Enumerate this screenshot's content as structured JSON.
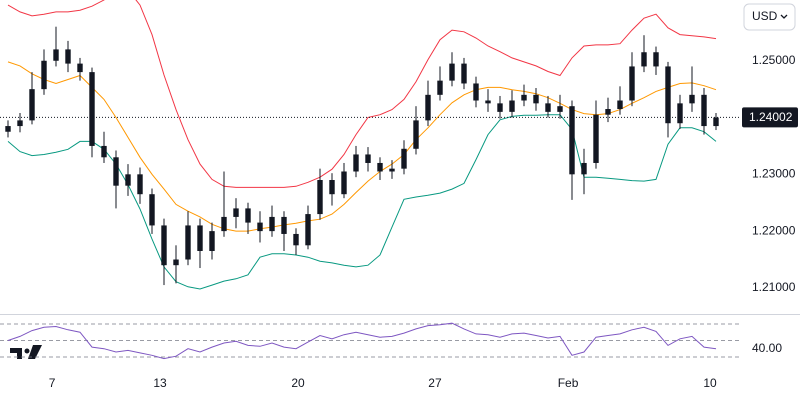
{
  "chart_data": {
    "type": "candlestick",
    "currency": "USD",
    "last_price": 1.24002,
    "xlim": [
      -0.667,
      61
    ],
    "ylim": [
      1.20558,
      1.2607
    ],
    "yticks": [
      {
        "value": 1.21,
        "label": "1.21000"
      },
      {
        "value": 1.22,
        "label": "1.22000"
      },
      {
        "value": 1.23,
        "label": "1.23000"
      },
      {
        "value": 1.25,
        "label": "1.25000"
      }
    ],
    "xticks": [
      {
        "value": 3.67,
        "label": "7"
      },
      {
        "value": 12.67,
        "label": "13"
      },
      {
        "value": 24.17,
        "label": "20"
      },
      {
        "value": 35.58,
        "label": "27"
      },
      {
        "value": 46.67,
        "label": "Feb"
      },
      {
        "value": 58.5,
        "label": "10"
      }
    ],
    "color": "#131722",
    "candles": {
      "open": [
        1.2375,
        1.2385,
        1.2395,
        1.245,
        1.25,
        1.252,
        1.2495,
        1.248,
        1.235,
        1.233,
        1.228,
        1.23,
        1.2265,
        1.221,
        1.214,
        1.215,
        1.221,
        1.2165,
        1.22,
        1.2225,
        1.224,
        1.2215,
        1.22,
        1.2225,
        1.2195,
        1.2175,
        1.223,
        1.229,
        1.2265,
        1.2305,
        1.2335,
        1.232,
        1.2305,
        1.231,
        1.2345,
        1.2395,
        1.244,
        1.2465,
        1.2495,
        1.246,
        1.243,
        1.2425,
        1.241,
        1.243,
        1.244,
        1.2425,
        1.241,
        1.242,
        1.23,
        1.232,
        1.2405,
        1.2415,
        1.243,
        1.249,
        1.2515,
        1.249,
        1.239,
        1.2425,
        1.244,
        1.2385
      ],
      "high": [
        1.2395,
        1.2408,
        1.248,
        1.252,
        1.256,
        1.2535,
        1.2505,
        1.2488,
        1.2375,
        1.2342,
        1.2318,
        1.2312,
        1.2275,
        1.2222,
        1.2175,
        1.2235,
        1.2222,
        1.2215,
        1.2305,
        1.2258,
        1.225,
        1.2235,
        1.2245,
        1.2235,
        1.2205,
        1.2245,
        1.231,
        1.2302,
        1.232,
        1.235,
        1.2348,
        1.233,
        1.2325,
        1.236,
        1.242,
        1.2465,
        1.249,
        1.2515,
        1.2505,
        1.2472,
        1.245,
        1.2438,
        1.2448,
        1.2458,
        1.2452,
        1.2438,
        1.244,
        1.243,
        1.2345,
        1.243,
        1.2435,
        1.2455,
        1.2515,
        1.2545,
        1.2525,
        1.2498,
        1.244,
        1.249,
        1.2452,
        1.2408
      ],
      "low": [
        1.2365,
        1.2374,
        1.2388,
        1.244,
        1.249,
        1.248,
        1.2465,
        1.233,
        1.232,
        1.224,
        1.2262,
        1.2248,
        1.2195,
        1.2105,
        1.2108,
        1.214,
        1.2135,
        1.215,
        1.219,
        1.2205,
        1.2195,
        1.218,
        1.219,
        1.2165,
        1.2158,
        1.2168,
        1.222,
        1.2245,
        1.2258,
        1.2295,
        1.2305,
        1.229,
        1.2292,
        1.23,
        1.2335,
        1.2385,
        1.243,
        1.2455,
        1.245,
        1.2418,
        1.241,
        1.2398,
        1.24,
        1.242,
        1.2412,
        1.24,
        1.2398,
        1.2255,
        1.2265,
        1.231,
        1.2392,
        1.2405,
        1.242,
        1.248,
        1.2475,
        1.2365,
        1.238,
        1.241,
        1.237,
        1.2378
      ],
      "close": [
        1.2385,
        1.2395,
        1.245,
        1.25,
        1.252,
        1.2495,
        1.248,
        1.235,
        1.233,
        1.228,
        1.23,
        1.2265,
        1.221,
        1.214,
        1.215,
        1.221,
        1.2165,
        1.22,
        1.2225,
        1.224,
        1.2215,
        1.22,
        1.2225,
        1.2195,
        1.2175,
        1.223,
        1.229,
        1.2265,
        1.2305,
        1.2335,
        1.232,
        1.2305,
        1.231,
        1.2345,
        1.2395,
        1.244,
        1.2465,
        1.2495,
        1.246,
        1.243,
        1.2425,
        1.241,
        1.243,
        1.244,
        1.2425,
        1.241,
        1.242,
        1.23,
        1.232,
        1.2405,
        1.2415,
        1.243,
        1.249,
        1.2515,
        1.249,
        1.239,
        1.2425,
        1.244,
        1.2385,
        1.24
      ]
    },
    "bands": [
      {
        "color": "#f23645",
        "values": [
          1.2598,
          1.2586,
          1.2579,
          1.2582,
          1.2586,
          1.2586,
          1.2589,
          1.2596,
          1.2607,
          1.2625,
          1.2625,
          1.2598,
          1.2546,
          1.2475,
          1.2414,
          1.2361,
          1.2318,
          1.2291,
          1.2279,
          1.2277,
          1.2277,
          1.2277,
          1.2277,
          1.2277,
          1.2279,
          1.2286,
          1.2295,
          1.2309,
          1.2335,
          1.237,
          1.24,
          1.2405,
          1.2414,
          1.2432,
          1.2463,
          1.2502,
          1.2537,
          1.2554,
          1.2551,
          1.254,
          1.2526,
          1.2516,
          1.2505,
          1.2498,
          1.2491,
          1.2481,
          1.2474,
          1.2505,
          1.2526,
          1.2528,
          1.2528,
          1.253,
          1.2554,
          1.2575,
          1.2582,
          1.2558,
          1.2546,
          1.2544,
          1.2542,
          1.2539
        ]
      },
      {
        "color": "#ff9800",
        "values": [
          1.2498,
          1.2491,
          1.2477,
          1.2467,
          1.246,
          1.2467,
          1.2474,
          1.2453,
          1.2432,
          1.24,
          1.2365,
          1.233,
          1.23,
          1.2274,
          1.2247,
          1.2235,
          1.2225,
          1.2212,
          1.2204,
          1.22,
          1.22,
          1.2204,
          1.2207,
          1.2211,
          1.2214,
          1.2218,
          1.2221,
          1.223,
          1.2247,
          1.2268,
          1.2288,
          1.2305,
          1.2318,
          1.2335,
          1.2361,
          1.2382,
          1.2405,
          1.2426,
          1.244,
          1.2449,
          1.2453,
          1.2453,
          1.2449,
          1.2446,
          1.2442,
          1.2435,
          1.2425,
          1.2414,
          1.2407,
          1.2405,
          1.2407,
          1.2414,
          1.2425,
          1.2435,
          1.2446,
          1.2453,
          1.246,
          1.2461,
          1.2456,
          1.2449
        ]
      },
      {
        "color": "#089981",
        "values": [
          1.2358,
          1.234,
          1.2333,
          1.2335,
          1.2339,
          1.2344,
          1.2358,
          1.2358,
          1.2344,
          1.2318,
          1.2282,
          1.2239,
          1.2186,
          1.2137,
          1.2111,
          1.2102,
          1.2098,
          1.2105,
          1.2112,
          1.2116,
          1.2123,
          1.2154,
          1.216,
          1.216,
          1.2158,
          1.2154,
          1.2147,
          1.2144,
          1.214,
          1.2137,
          1.214,
          1.2158,
          1.2207,
          1.2256,
          1.226,
          1.2263,
          1.2267,
          1.2274,
          1.2284,
          1.2326,
          1.237,
          1.2396,
          1.2402,
          1.2404,
          1.2404,
          1.2405,
          1.2405,
          1.2379,
          1.2295,
          1.2295,
          1.2293,
          1.2291,
          1.2289,
          1.2288,
          1.2291,
          1.2353,
          1.2382,
          1.2382,
          1.2375,
          1.2358
        ]
      }
    ],
    "rsi": {
      "color": "#7e57c2",
      "ylim": [
        11.8,
        79.7
      ],
      "levels": [
        70,
        50,
        30
      ],
      "last_label": "40.00",
      "values": [
        50,
        55,
        62,
        66,
        67,
        63,
        60,
        42,
        40,
        36,
        38,
        35,
        32,
        28,
        31,
        40,
        36,
        42,
        47,
        49,
        44,
        43,
        47,
        42,
        40,
        48,
        56,
        52,
        57,
        60,
        57,
        54,
        55,
        59,
        64,
        68,
        69,
        71,
        64,
        58,
        57,
        54,
        58,
        59,
        56,
        53,
        55,
        32,
        36,
        54,
        56,
        58,
        63,
        66,
        61,
        44,
        52,
        55,
        42,
        40
      ]
    }
  }
}
